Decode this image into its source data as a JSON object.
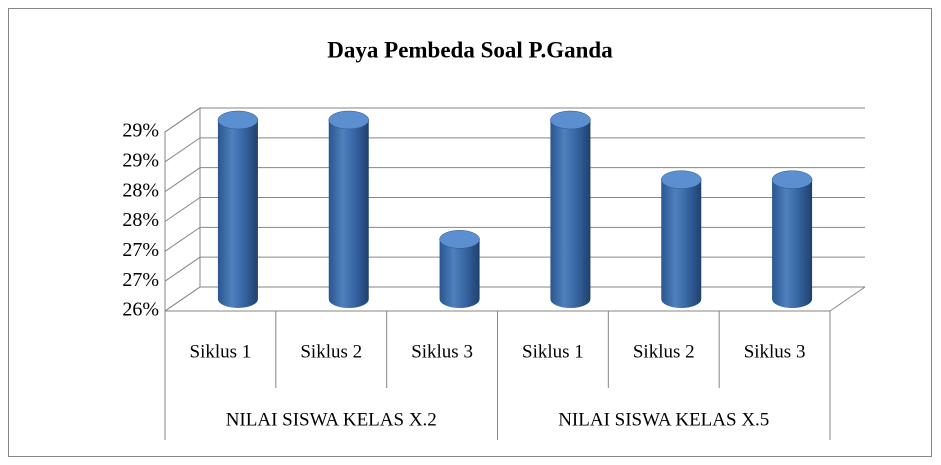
{
  "chart_data": {
    "type": "bar3d",
    "title": "Daya Pembeda Soal P.Ganda",
    "categories": [
      "Siklus 1",
      "Siklus 2",
      "Siklus 3",
      "Siklus 1",
      "Siklus 2",
      "Siklus 3"
    ],
    "groups": [
      "NILAI SISWA KELAS X.2",
      "NILAI SISWA KELAS X.5"
    ],
    "values": [
      29,
      29,
      27,
      29,
      28,
      28
    ],
    "color": "#4f81bd",
    "ylim": [
      26,
      29
    ],
    "yticks": [
      {
        "value": 26,
        "label": "26%"
      },
      {
        "value": 26.5,
        "label": "27%"
      },
      {
        "value": 27,
        "label": "27%"
      },
      {
        "value": 27.5,
        "label": "28%"
      },
      {
        "value": 28,
        "label": "28%"
      },
      {
        "value": 28.5,
        "label": "29%"
      },
      {
        "value": 29,
        "label": "29%"
      }
    ],
    "grid": true
  }
}
